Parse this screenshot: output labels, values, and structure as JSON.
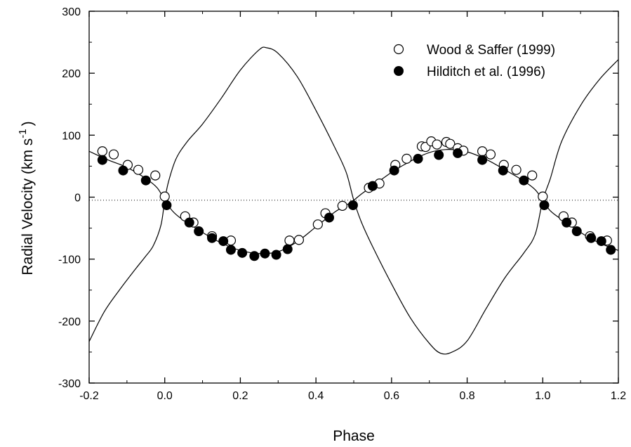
{
  "chart_data": {
    "type": "scatter",
    "title": "",
    "xlabel": "Phase",
    "ylabel": {
      "main": "Radial Velocity (km s",
      "superscript": "-1",
      "close": ")"
    },
    "xlim": [
      -0.2,
      1.2
    ],
    "ylim": [
      -300,
      300
    ],
    "xticks": [
      -0.2,
      0.0,
      0.2,
      0.4,
      0.6,
      0.8,
      1.0,
      1.2
    ],
    "xtick_labels": [
      "-0.2",
      "0.0",
      "0.2",
      "0.4",
      "0.6",
      "0.8",
      "1.0",
      "1.2"
    ],
    "yticks": [
      -300,
      -200,
      -100,
      0,
      100,
      200,
      300
    ],
    "ytick_labels": [
      "-300",
      "-200",
      "-100",
      "0",
      "100",
      "200",
      "300"
    ],
    "grid": false,
    "legend_position": "top-right",
    "zero_line": {
      "y": -5,
      "style": "dotted"
    },
    "series": [
      {
        "name": "Wood & Saffer (1999)",
        "marker": "open-circle",
        "points": [
          [
            -0.165,
            74
          ],
          [
            -0.135,
            69
          ],
          [
            -0.098,
            52
          ],
          [
            -0.07,
            44
          ],
          [
            -0.025,
            35
          ],
          [
            0.0,
            1
          ],
          [
            0.054,
            -31
          ],
          [
            0.076,
            -41
          ],
          [
            0.125,
            -63
          ],
          [
            0.175,
            -70
          ],
          [
            0.33,
            -70
          ],
          [
            0.355,
            -69
          ],
          [
            0.405,
            -44
          ],
          [
            0.425,
            -26
          ],
          [
            0.47,
            -14
          ],
          [
            0.54,
            15
          ],
          [
            0.568,
            22
          ],
          [
            0.61,
            52
          ],
          [
            0.64,
            62
          ],
          [
            0.68,
            82
          ],
          [
            0.69,
            81
          ],
          [
            0.705,
            90
          ],
          [
            0.72,
            85
          ],
          [
            0.745,
            89
          ],
          [
            0.755,
            86
          ],
          [
            0.775,
            79
          ],
          [
            0.79,
            75
          ],
          [
            0.84,
            74
          ],
          [
            0.862,
            69
          ],
          [
            0.897,
            52
          ],
          [
            0.93,
            44
          ],
          [
            0.972,
            35
          ],
          [
            1.0,
            1
          ],
          [
            1.055,
            -31
          ],
          [
            1.077,
            -41
          ],
          [
            1.125,
            -63
          ],
          [
            1.17,
            -70
          ]
        ]
      },
      {
        "name": "Hilditch et al. (1996)",
        "marker": "filled-circle",
        "points": [
          [
            -0.165,
            60
          ],
          [
            -0.11,
            43
          ],
          [
            -0.05,
            27
          ],
          [
            0.005,
            -13
          ],
          [
            0.065,
            -41
          ],
          [
            0.09,
            -55
          ],
          [
            0.125,
            -66
          ],
          [
            0.155,
            -71
          ],
          [
            0.175,
            -85
          ],
          [
            0.205,
            -90
          ],
          [
            0.237,
            -95
          ],
          [
            0.265,
            -91
          ],
          [
            0.295,
            -93
          ],
          [
            0.325,
            -84
          ],
          [
            0.435,
            -33
          ],
          [
            0.498,
            -13
          ],
          [
            0.55,
            18
          ],
          [
            0.607,
            43
          ],
          [
            0.67,
            62
          ],
          [
            0.725,
            68
          ],
          [
            0.775,
            71
          ],
          [
            0.84,
            60
          ],
          [
            0.895,
            43
          ],
          [
            0.95,
            27
          ],
          [
            1.004,
            -13
          ],
          [
            1.063,
            -41
          ],
          [
            1.09,
            -55
          ],
          [
            1.128,
            -66
          ],
          [
            1.155,
            -71
          ],
          [
            1.18,
            -85
          ]
        ]
      }
    ],
    "model_curves": [
      {
        "style": "solid",
        "points": [
          [
            -0.2,
            74
          ],
          [
            -0.15,
            60
          ],
          [
            -0.1,
            48
          ],
          [
            -0.05,
            30
          ],
          [
            -0.02,
            15
          ],
          [
            0.0,
            -5
          ],
          [
            0.02,
            -22
          ],
          [
            0.04,
            -33
          ],
          [
            0.07,
            -45
          ],
          [
            0.1,
            -57
          ],
          [
            0.15,
            -74
          ],
          [
            0.2,
            -86
          ],
          [
            0.25,
            -91
          ],
          [
            0.3,
            -88
          ],
          [
            0.35,
            -72
          ],
          [
            0.4,
            -48
          ],
          [
            0.45,
            -24
          ],
          [
            0.48,
            -13
          ],
          [
            0.5,
            -5
          ],
          [
            0.52,
            5
          ],
          [
            0.55,
            18
          ],
          [
            0.6,
            40
          ],
          [
            0.65,
            58
          ],
          [
            0.7,
            72
          ],
          [
            0.75,
            77
          ],
          [
            0.8,
            73
          ],
          [
            0.85,
            61
          ],
          [
            0.9,
            44
          ],
          [
            0.95,
            26
          ],
          [
            0.98,
            12
          ],
          [
            1.0,
            -5
          ],
          [
            1.02,
            -22
          ],
          [
            1.05,
            -36
          ],
          [
            1.1,
            -57
          ],
          [
            1.15,
            -74
          ],
          [
            1.2,
            -86
          ]
        ]
      },
      {
        "style": "solid",
        "points": [
          [
            -0.2,
            -233
          ],
          [
            -0.16,
            -185
          ],
          [
            -0.12,
            -150
          ],
          [
            -0.08,
            -118
          ],
          [
            -0.05,
            -95
          ],
          [
            -0.03,
            -78
          ],
          [
            -0.01,
            -45
          ],
          [
            0.0,
            -5
          ],
          [
            0.01,
            25
          ],
          [
            0.03,
            62
          ],
          [
            0.06,
            90
          ],
          [
            0.1,
            118
          ],
          [
            0.15,
            160
          ],
          [
            0.2,
            205
          ],
          [
            0.25,
            238
          ],
          [
            0.27,
            241
          ],
          [
            0.3,
            232
          ],
          [
            0.35,
            195
          ],
          [
            0.4,
            140
          ],
          [
            0.45,
            80
          ],
          [
            0.48,
            40
          ],
          [
            0.5,
            -5
          ],
          [
            0.52,
            -40
          ],
          [
            0.55,
            -80
          ],
          [
            0.6,
            -140
          ],
          [
            0.65,
            -195
          ],
          [
            0.7,
            -236
          ],
          [
            0.73,
            -252
          ],
          [
            0.76,
            -250
          ],
          [
            0.8,
            -232
          ],
          [
            0.85,
            -180
          ],
          [
            0.9,
            -130
          ],
          [
            0.95,
            -90
          ],
          [
            0.98,
            -60
          ],
          [
            1.0,
            -5
          ],
          [
            1.02,
            30
          ],
          [
            1.05,
            90
          ],
          [
            1.1,
            148
          ],
          [
            1.15,
            190
          ],
          [
            1.2,
            222
          ]
        ]
      }
    ]
  }
}
